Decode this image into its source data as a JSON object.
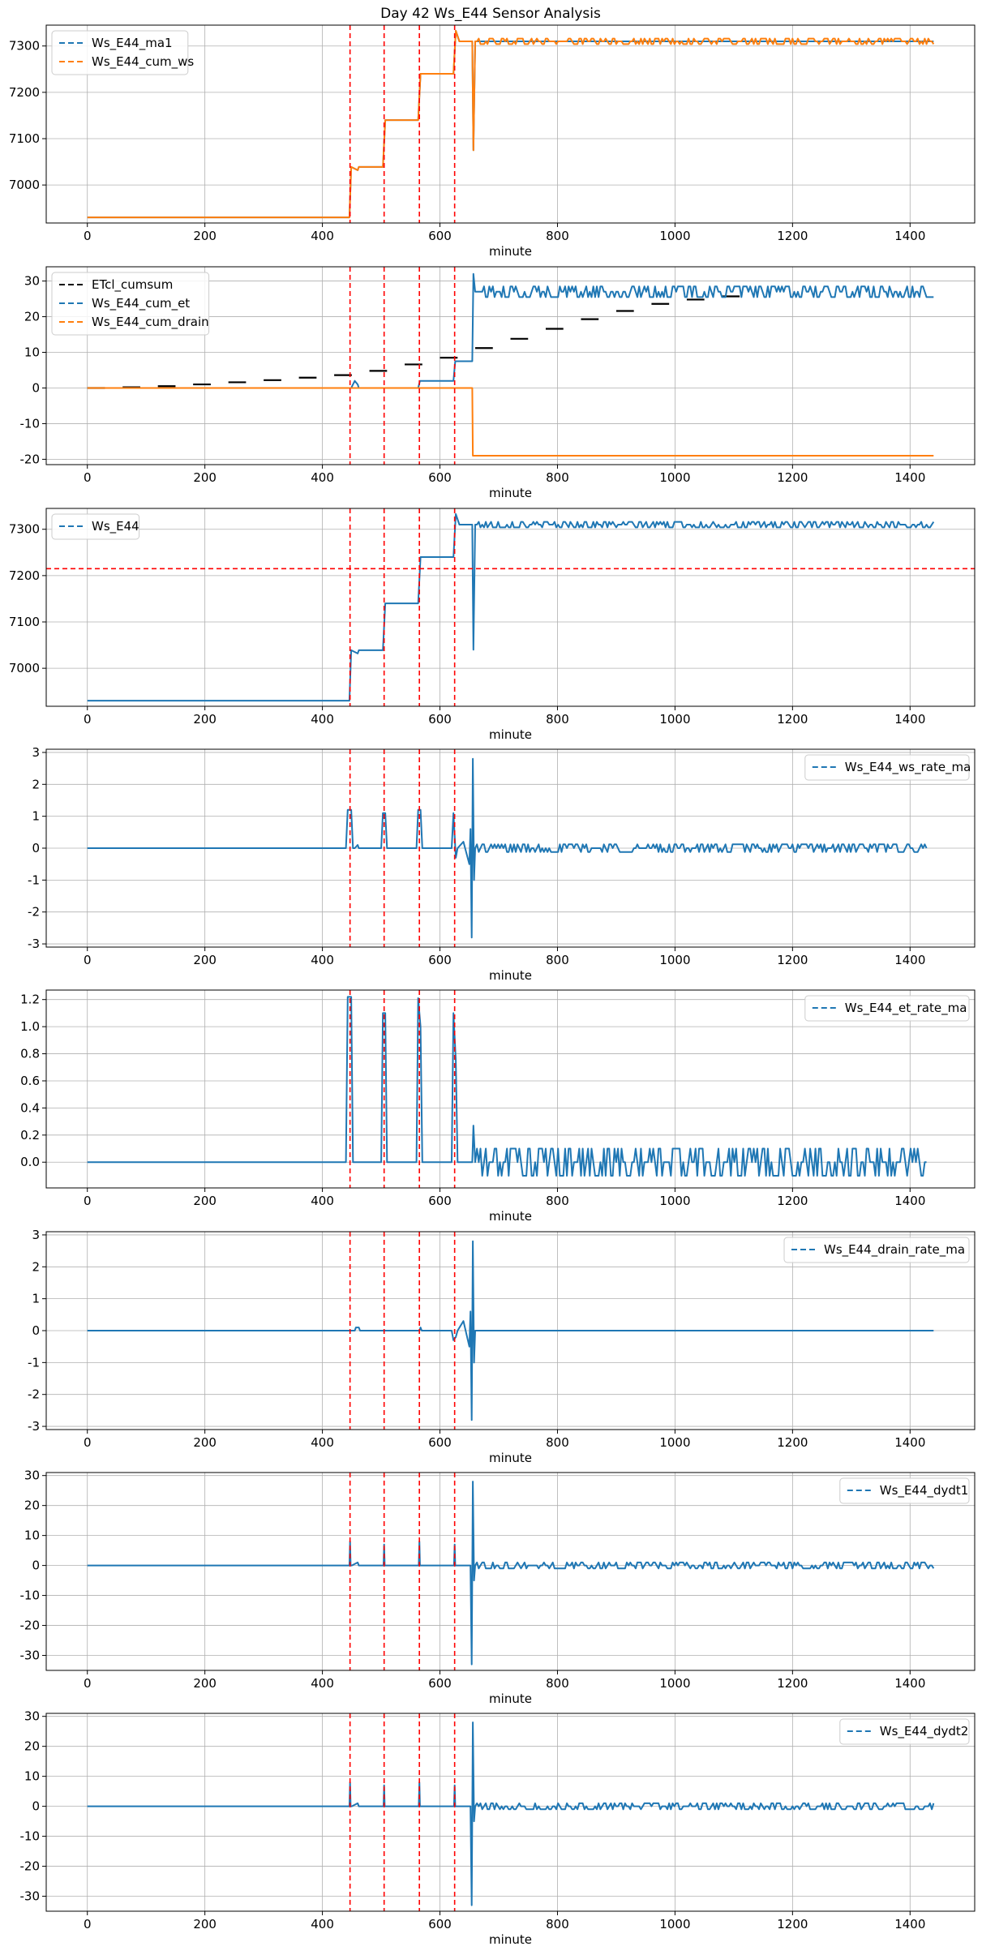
{
  "title": "Day 42 Ws_E44 Sensor Analysis",
  "colors": {
    "blue": "#1f77b4",
    "orange": "#ff7f0e",
    "black": "#000000",
    "red": "#ff0000",
    "grid": "#b0b0b0"
  },
  "chart_data": [
    {
      "type": "line",
      "xlabel": "minute",
      "xlim": [
        -70,
        1510
      ],
      "xticks": [
        0,
        200,
        400,
        600,
        800,
        1000,
        1200,
        1400
      ],
      "ylim": [
        6918,
        7345
      ],
      "yticks": [
        7000,
        7100,
        7200,
        7300
      ],
      "ytick_labels": [
        "7000",
        "7100",
        "7200",
        "7300"
      ],
      "legend": "top-left",
      "events": [
        447,
        505,
        565,
        625
      ],
      "series": [
        {
          "name": "Ws_E44_ma1",
          "color": "blue",
          "style": "dashed",
          "x": [
            0,
            446,
            449,
            460,
            462,
            470,
            503,
            507,
            540,
            563,
            567,
            600,
            623,
            627,
            633,
            655,
            657,
            660,
            1440
          ],
          "y": [
            6930,
            6930,
            7039,
            7032,
            7039,
            7039,
            7039,
            7140,
            7140,
            7140,
            7240,
            7240,
            7240,
            7333,
            7310,
            7310,
            7075,
            7310,
            7310
          ]
        },
        {
          "name": "Ws_E44_cum_ws",
          "color": "orange",
          "style": "dashed",
          "x": [
            0,
            446,
            449,
            460,
            462,
            470,
            503,
            507,
            540,
            563,
            567,
            600,
            623,
            627,
            633,
            655,
            657,
            660,
            1440
          ],
          "y": [
            6930,
            6930,
            7039,
            7032,
            7039,
            7039,
            7039,
            7140,
            7140,
            7140,
            7240,
            7240,
            7240,
            7333,
            7310,
            7310,
            7075,
            7310,
            7310
          ],
          "noise_from_x": 660,
          "noise_amp": 6
        }
      ]
    },
    {
      "type": "line",
      "xlabel": "minute",
      "xlim": [
        -70,
        1510
      ],
      "xticks": [
        0,
        200,
        400,
        600,
        800,
        1000,
        1200,
        1400
      ],
      "ylim": [
        -21.5,
        34
      ],
      "yticks": [
        -20,
        -10,
        0,
        10,
        20,
        30
      ],
      "ytick_labels": [
        "-20",
        "-10",
        "0",
        "10",
        "20",
        "30"
      ],
      "legend": "top-left",
      "events": [
        447,
        505,
        565,
        625
      ],
      "series": [
        {
          "name": "ETcl_cumsum",
          "color": "black",
          "style": "dashed",
          "step": 30,
          "x": [
            0,
            60,
            120,
            180,
            240,
            300,
            360,
            420,
            480,
            540,
            600,
            660,
            720,
            780,
            840,
            900,
            960,
            1020,
            1080
          ],
          "y": [
            0.0,
            0.2,
            0.5,
            1.0,
            1.6,
            2.2,
            2.9,
            3.6,
            4.8,
            6.6,
            8.5,
            11.2,
            13.8,
            16.6,
            19.3,
            21.6,
            23.6,
            24.8,
            25.7
          ]
        },
        {
          "name": "Ws_E44_cum_et",
          "color": "blue",
          "style": "dashed",
          "x": [
            0,
            446,
            449,
            452,
            455,
            460,
            462,
            467,
            470,
            563,
            566,
            570,
            600,
            623,
            626,
            650,
            655,
            657,
            660,
            1440
          ],
          "y": [
            0,
            0,
            0,
            1,
            2,
            1,
            0,
            0,
            0,
            0,
            2,
            2,
            2,
            2,
            7.5,
            7.5,
            7.5,
            32,
            27,
            27
          ],
          "noise_from_x": 660,
          "noise_amp": 1.5
        },
        {
          "name": "Ws_E44_cum_drain",
          "color": "orange",
          "style": "dashed",
          "x": [
            0,
            655,
            656,
            1440
          ],
          "y": [
            0,
            0,
            -19,
            -19
          ]
        }
      ]
    },
    {
      "type": "line",
      "xlabel": "minute",
      "xlim": [
        -70,
        1510
      ],
      "xticks": [
        0,
        200,
        400,
        600,
        800,
        1000,
        1200,
        1400
      ],
      "ylim": [
        6918,
        7345
      ],
      "yticks": [
        7000,
        7100,
        7200,
        7300
      ],
      "ytick_labels": [
        "7000",
        "7100",
        "7200",
        "7300"
      ],
      "legend": "top-left",
      "events": [
        447,
        505,
        565,
        625
      ],
      "hline": 7215,
      "series": [
        {
          "name": "Ws_E44",
          "color": "blue",
          "style": "dashed",
          "x": [
            0,
            446,
            449,
            460,
            462,
            470,
            503,
            507,
            540,
            563,
            567,
            600,
            623,
            627,
            633,
            655,
            657,
            660,
            1440
          ],
          "y": [
            6930,
            6930,
            7039,
            7032,
            7039,
            7039,
            7039,
            7140,
            7140,
            7140,
            7240,
            7240,
            7240,
            7333,
            7310,
            7310,
            7040,
            7310,
            7310
          ],
          "noise_from_x": 660,
          "noise_amp": 6
        }
      ]
    },
    {
      "type": "line",
      "xlabel": "minute",
      "xlim": [
        -70,
        1510
      ],
      "xticks": [
        0,
        200,
        400,
        600,
        800,
        1000,
        1200,
        1400
      ],
      "ylim": [
        -3.1,
        3.1
      ],
      "yticks": [
        -3,
        -2,
        -1,
        0,
        1,
        2,
        3
      ],
      "ytick_labels": [
        "-3",
        "-2",
        "-1",
        "0",
        "1",
        "2",
        "3"
      ],
      "legend": "top-right",
      "events": [
        447,
        505,
        565,
        625
      ],
      "series": [
        {
          "name": "Ws_E44_ws_rate_ma",
          "color": "blue",
          "style": "dashed",
          "x": [
            0,
            440,
            443,
            449,
            452,
            455,
            460,
            462,
            500,
            503,
            507,
            510,
            560,
            563,
            567,
            570,
            620,
            623,
            627,
            630,
            640,
            650,
            652,
            654,
            656,
            658,
            660,
            1430
          ],
          "y": [
            0,
            0,
            1.2,
            1.2,
            0,
            0,
            0.1,
            0,
            0,
            1.1,
            1.1,
            0,
            0,
            1.2,
            1.2,
            0,
            0,
            1.1,
            -0.3,
            0,
            0.2,
            -0.5,
            0.6,
            -2.8,
            2.8,
            -1.0,
            0,
            0
          ],
          "noise_from_x": 660,
          "noise_amp": 0.12
        }
      ]
    },
    {
      "type": "line",
      "xlabel": "minute",
      "xlim": [
        -70,
        1510
      ],
      "xticks": [
        0,
        200,
        400,
        600,
        800,
        1000,
        1200,
        1400
      ],
      "ylim": [
        -0.19,
        1.27
      ],
      "yticks": [
        0.0,
        0.2,
        0.4,
        0.6,
        0.8,
        1.0,
        1.2
      ],
      "ytick_labels": [
        "0.0",
        "0.2",
        "0.4",
        "0.6",
        "0.8",
        "1.0",
        "1.2"
      ],
      "legend": "top-right",
      "events": [
        447,
        505,
        565,
        625
      ],
      "series": [
        {
          "name": "Ws_E44_et_rate_ma",
          "color": "blue",
          "style": "dashed",
          "x": [
            0,
            440,
            443,
            449,
            452,
            500,
            503,
            507,
            510,
            560,
            563,
            567,
            570,
            620,
            623,
            627,
            630,
            655,
            657,
            660,
            1430
          ],
          "y": [
            0,
            0,
            1.22,
            1.22,
            0,
            0,
            1.1,
            1.1,
            0,
            0,
            1.21,
            1.0,
            0,
            0,
            1.1,
            0.75,
            0,
            0,
            0.27,
            0,
            0
          ],
          "noise_from_x": 660,
          "noise_amp": 0.1
        }
      ]
    },
    {
      "type": "line",
      "xlabel": "minute",
      "xlim": [
        -70,
        1510
      ],
      "xticks": [
        0,
        200,
        400,
        600,
        800,
        1000,
        1200,
        1400
      ],
      "ylim": [
        -3.1,
        3.1
      ],
      "yticks": [
        -3,
        -2,
        -1,
        0,
        1,
        2,
        3
      ],
      "ytick_labels": [
        "-3",
        "-2",
        "-1",
        "0",
        "1",
        "2",
        "3"
      ],
      "legend": "top-right",
      "events": [
        447,
        505,
        565,
        625
      ],
      "series": [
        {
          "name": "Ws_E44_drain_rate_ma",
          "color": "blue",
          "style": "dashed",
          "x": [
            0,
            455,
            457,
            462,
            464,
            565,
            567,
            569,
            620,
            623,
            627,
            630,
            640,
            650,
            652,
            654,
            656,
            658,
            660,
            1440
          ],
          "y": [
            0,
            0,
            0.1,
            0.1,
            0,
            0,
            0.1,
            0,
            0,
            -0.3,
            -0.2,
            0,
            0.3,
            -0.5,
            0.6,
            -2.8,
            2.8,
            -1.0,
            0,
            0
          ]
        }
      ]
    },
    {
      "type": "line",
      "xlabel": "minute",
      "xlim": [
        -70,
        1510
      ],
      "xticks": [
        0,
        200,
        400,
        600,
        800,
        1000,
        1200,
        1400
      ],
      "ylim": [
        -35,
        31
      ],
      "yticks": [
        -30,
        -20,
        -10,
        0,
        10,
        20,
        30
      ],
      "ytick_labels": [
        "-30",
        "-20",
        "-10",
        "0",
        "10",
        "20",
        "30"
      ],
      "legend": "top-right",
      "events": [
        447,
        505,
        565,
        625
      ],
      "series": [
        {
          "name": "Ws_E44_dydt1",
          "color": "blue",
          "style": "dashed",
          "x": [
            0,
            446,
            447,
            448,
            450,
            460,
            462,
            504,
            505,
            506,
            564,
            565,
            566,
            624,
            625,
            626,
            652,
            654,
            656,
            658,
            660,
            1440
          ],
          "y": [
            0,
            0,
            8,
            0,
            0,
            1,
            0,
            0,
            7,
            0,
            0,
            8,
            0,
            0,
            7,
            0,
            0,
            -33,
            28,
            -5,
            0,
            0
          ],
          "noise_from_x": 660,
          "noise_amp": 1
        }
      ]
    },
    {
      "type": "line",
      "xlabel": "minute",
      "xlim": [
        -70,
        1510
      ],
      "xticks": [
        0,
        200,
        400,
        600,
        800,
        1000,
        1200,
        1400
      ],
      "ylim": [
        -35,
        31
      ],
      "yticks": [
        -30,
        -20,
        -10,
        0,
        10,
        20,
        30
      ],
      "ytick_labels": [
        "-30",
        "-20",
        "-10",
        "0",
        "10",
        "20",
        "30"
      ],
      "legend": "top-right",
      "events": [
        447,
        505,
        565,
        625
      ],
      "series": [
        {
          "name": "Ws_E44_dydt2",
          "color": "blue",
          "style": "dashed",
          "x": [
            0,
            446,
            447,
            448,
            450,
            460,
            462,
            504,
            505,
            506,
            564,
            565,
            566,
            624,
            625,
            626,
            652,
            654,
            656,
            658,
            660,
            1440
          ],
          "y": [
            0,
            0,
            8,
            0,
            0,
            1,
            0,
            0,
            7,
            0,
            0,
            8,
            0,
            0,
            7,
            0,
            0,
            -33,
            28,
            -5,
            0,
            0
          ],
          "noise_from_x": 660,
          "noise_amp": 1
        }
      ]
    }
  ]
}
